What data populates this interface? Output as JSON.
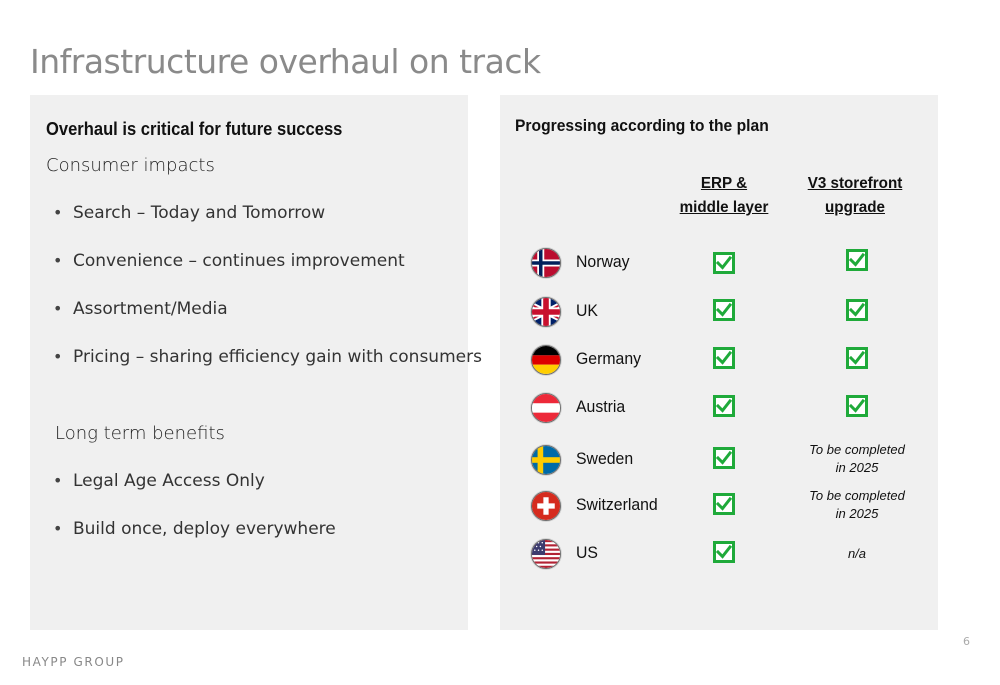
{
  "slide": {
    "title": "Infrastructure overhaul on track",
    "footer_brand": "HAYPP GROUP",
    "page_number": "6"
  },
  "left_panel": {
    "heading": "Overhaul is critical for future success",
    "consumer_heading": "Consumer impacts",
    "consumer_bullets": [
      "Search – Today and Tomorrow",
      "Convenience – continues improvement",
      "Assortment/Media",
      "Pricing – sharing efficiency gain with consumers"
    ],
    "benefits_heading": "Long term benefits",
    "benefits_bullets": [
      "Legal Age Access Only",
      "Build once, deploy everywhere"
    ]
  },
  "right_panel": {
    "heading": "Progressing according to the plan",
    "columns": {
      "erp_line1": "ERP &",
      "erp_line2": "middle layer",
      "v3_line1": "V3 storefront",
      "v3_line2": "upgrade"
    },
    "rows": [
      {
        "country": "Norway",
        "flag_icon": "norway-flag-icon",
        "erp": "done",
        "v3": "done",
        "v3_note_line1": "",
        "v3_note_line2": ""
      },
      {
        "country": "UK",
        "flag_icon": "uk-flag-icon",
        "erp": "done",
        "v3": "done",
        "v3_note_line1": "",
        "v3_note_line2": ""
      },
      {
        "country": "Germany",
        "flag_icon": "germany-flag-icon",
        "erp": "done",
        "v3": "done",
        "v3_note_line1": "",
        "v3_note_line2": ""
      },
      {
        "country": "Austria",
        "flag_icon": "austria-flag-icon",
        "erp": "done",
        "v3": "done",
        "v3_note_line1": "",
        "v3_note_line2": ""
      },
      {
        "country": "Sweden",
        "flag_icon": "sweden-flag-icon",
        "erp": "done",
        "v3": "note",
        "v3_note_line1": "To be completed",
        "v3_note_line2": "in 2025"
      },
      {
        "country": "Switzerland",
        "flag_icon": "switzerland-flag-icon",
        "erp": "done",
        "v3": "note",
        "v3_note_line1": "To be completed",
        "v3_note_line2": "in 2025"
      },
      {
        "country": "US",
        "flag_icon": "us-flag-icon",
        "erp": "done",
        "v3": "note",
        "v3_note_line1": "n/a",
        "v3_note_line2": ""
      }
    ]
  },
  "colors": {
    "title_gray": "#8a8a8a",
    "panel_bg": "#f0f0f0",
    "check_green": "#1faa3a"
  }
}
